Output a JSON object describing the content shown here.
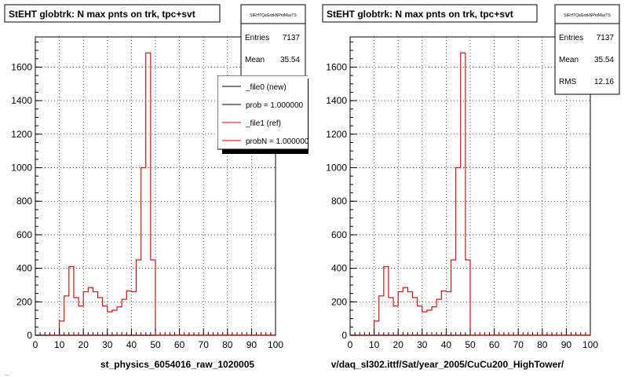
{
  "colors": {
    "ref_line": "#cc0000",
    "new_line": "#000000",
    "frame": "#000000",
    "grid": "#000000",
    "shadow": "#000000"
  },
  "footer_fragment": "...",
  "panels": [
    {
      "title": "StEHT globtrk: N max pnts on trk, tpc+svt",
      "stats": {
        "name": "StEHTQaGrtrkNPntMaxTS",
        "rows": [
          {
            "label": "Entries",
            "value": "7137"
          },
          {
            "label": "Mean",
            "value": "35.54"
          }
        ]
      },
      "legend": [
        {
          "label": "_file0 (new)",
          "color": "#000000"
        },
        {
          "label": "prob = 1.000000",
          "color": "#000000"
        },
        {
          "label": "_file1 (ref)",
          "color": "#cc0000"
        },
        {
          "label": "probN = 1.000000",
          "color": "#cc0000"
        }
      ],
      "xlabel": "st_physics_6054016_raw_1020005"
    },
    {
      "title": "StEHT globtrk: N max pnts on trk, tpc+svt",
      "stats": {
        "name": "StEHTQaGrtrkNPntMaxTS",
        "rows": [
          {
            "label": "Entries",
            "value": "7137"
          },
          {
            "label": "Mean",
            "value": "35.54"
          },
          {
            "label": "RMS",
            "value": "12.16"
          }
        ]
      },
      "legend": [],
      "xlabel": "v/daq_sl302.ittf/Sat/year_2005/CuCu200_HighTower/"
    }
  ],
  "chart_data": [
    {
      "type": "line",
      "title": "StEHT globtrk: N max pnts on trk, tpc+svt",
      "xlabel": "st_physics_6054016_raw_1020005",
      "ylabel": "",
      "xlim": [
        0,
        100
      ],
      "ylim": [
        0,
        1780
      ],
      "xticks": [
        0,
        10,
        20,
        30,
        40,
        50,
        60,
        70,
        80,
        90,
        100
      ],
      "yticks": [
        0,
        200,
        400,
        600,
        800,
        1000,
        1200,
        1400,
        1600
      ],
      "grid": true,
      "bin_width": 2,
      "x": [
        0,
        2,
        4,
        6,
        8,
        10,
        12,
        14,
        16,
        18,
        20,
        22,
        24,
        26,
        28,
        30,
        32,
        34,
        36,
        38,
        40,
        42,
        44,
        46,
        48,
        50,
        52,
        54,
        56,
        58,
        60,
        62,
        64,
        66,
        68,
        70,
        72,
        74,
        76,
        78,
        80,
        82,
        84,
        86,
        88,
        90,
        92,
        94,
        96,
        98
      ],
      "series": [
        {
          "name": "_file1 (ref)",
          "values": [
            0,
            0,
            0,
            0,
            0,
            85,
            235,
            410,
            225,
            175,
            260,
            285,
            260,
            225,
            175,
            140,
            150,
            170,
            215,
            265,
            260,
            450,
            1000,
            1685,
            450,
            0,
            0,
            0,
            0,
            0,
            0,
            0,
            0,
            0,
            0,
            0,
            0,
            0,
            0,
            0,
            0,
            0,
            0,
            0,
            0,
            0,
            0,
            0,
            0,
            0
          ]
        }
      ]
    },
    {
      "type": "line",
      "title": "StEHT globtrk: N max pnts on trk, tpc+svt",
      "xlabel": "v/daq_sl302.ittf/Sat/year_2005/CuCu200_HighTower/",
      "ylabel": "",
      "xlim": [
        0,
        100
      ],
      "ylim": [
        0,
        1780
      ],
      "xticks": [
        0,
        10,
        20,
        30,
        40,
        50,
        60,
        70,
        80,
        90,
        100
      ],
      "yticks": [
        0,
        200,
        400,
        600,
        800,
        1000,
        1200,
        1400,
        1600
      ],
      "grid": true,
      "bin_width": 2,
      "x": [
        0,
        2,
        4,
        6,
        8,
        10,
        12,
        14,
        16,
        18,
        20,
        22,
        24,
        26,
        28,
        30,
        32,
        34,
        36,
        38,
        40,
        42,
        44,
        46,
        48,
        50,
        52,
        54,
        56,
        58,
        60,
        62,
        64,
        66,
        68,
        70,
        72,
        74,
        76,
        78,
        80,
        82,
        84,
        86,
        88,
        90,
        92,
        94,
        96,
        98
      ],
      "series": [
        {
          "name": "",
          "values": [
            0,
            0,
            0,
            0,
            0,
            85,
            235,
            410,
            225,
            175,
            260,
            285,
            260,
            225,
            175,
            140,
            150,
            170,
            215,
            265,
            260,
            450,
            1000,
            1685,
            450,
            0,
            0,
            0,
            0,
            0,
            0,
            0,
            0,
            0,
            0,
            0,
            0,
            0,
            0,
            0,
            0,
            0,
            0,
            0,
            0,
            0,
            0,
            0,
            0,
            0
          ]
        }
      ]
    }
  ]
}
